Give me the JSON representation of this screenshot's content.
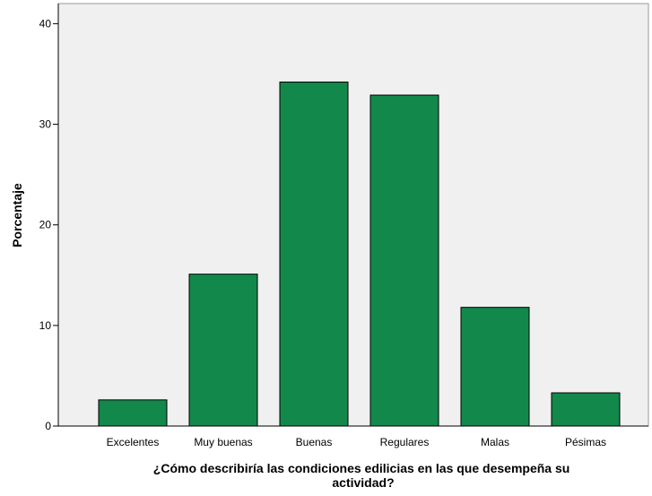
{
  "chart_data": {
    "type": "bar",
    "title": "",
    "xlabel_lines": [
      "¿Cómo describiría las condiciones edilicias en las que desempeña su",
      "actividad?"
    ],
    "ylabel": "Porcentaje",
    "categories": [
      "Excelentes",
      "Muy buenas",
      "Buenas",
      "Regulares",
      "Malas",
      "Pésimas"
    ],
    "values": [
      2.6,
      15.1,
      34.2,
      32.9,
      11.8,
      3.3
    ],
    "ylim": [
      0,
      42
    ],
    "yticks": [
      0,
      10,
      20,
      30,
      40
    ],
    "grid": false,
    "colors": {
      "bar_fill": "#12884b",
      "bar_stroke": "#000000",
      "plot_background": "#f0f0f0",
      "axis": "#000000"
    }
  }
}
